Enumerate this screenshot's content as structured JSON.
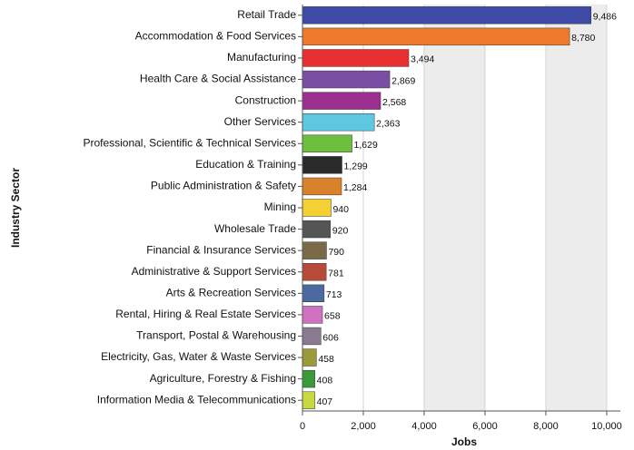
{
  "chart_data": {
    "type": "barh",
    "ylabel": "Industry Sector",
    "xlabel": "Jobs",
    "categories": [
      "Retail Trade",
      "Accommodation & Food Services",
      "Manufacturing",
      "Health Care & Social Assistance",
      "Construction",
      "Other Services",
      "Professional, Scientific & Technical Services",
      "Education & Training",
      "Public Administration & Safety",
      "Mining",
      "Wholesale Trade",
      "Financial & Insurance Services",
      "Administrative & Support Services",
      "Arts & Recreation Services",
      "Rental, Hiring & Real Estate Services",
      "Transport, Postal & Warehousing",
      "Electricity, Gas, Water & Waste Services",
      "Agriculture, Forestry & Fishing",
      "Information Media & Telecommunications"
    ],
    "values": [
      9486,
      8780,
      3494,
      2869,
      2568,
      2363,
      1629,
      1299,
      1284,
      940,
      920,
      790,
      781,
      713,
      658,
      606,
      458,
      408,
      407
    ],
    "value_labels": [
      "9,486",
      "8,780",
      "3,494",
      "2,869",
      "2,568",
      "2,363",
      "1,629",
      "1,299",
      "1,284",
      "940",
      "920",
      "790",
      "781",
      "713",
      "658",
      "606",
      "458",
      "408",
      "407"
    ],
    "colors": [
      "#3f4aa6",
      "#f07a2c",
      "#e83030",
      "#7a4fa3",
      "#9b2f8f",
      "#5fc8e0",
      "#6dbf3f",
      "#2a2a2a",
      "#d9822b",
      "#f5d033",
      "#555555",
      "#7a6a4a",
      "#b84a3a",
      "#4a6aa0",
      "#d070c0",
      "#8a7a90",
      "#9a9a3a",
      "#3a9a3a",
      "#c8d840"
    ],
    "xlim": [
      0,
      10450
    ],
    "xticks": [
      0,
      {
        "value": 2000,
        "label": "2,000"
      },
      {
        "value": 4000,
        "label": "4,000"
      },
      {
        "value": 6000,
        "label": "6,000"
      },
      {
        "value": 8000,
        "label": "8,000"
      },
      {
        "value": 10000,
        "label": "10,000"
      }
    ],
    "grid": true
  }
}
